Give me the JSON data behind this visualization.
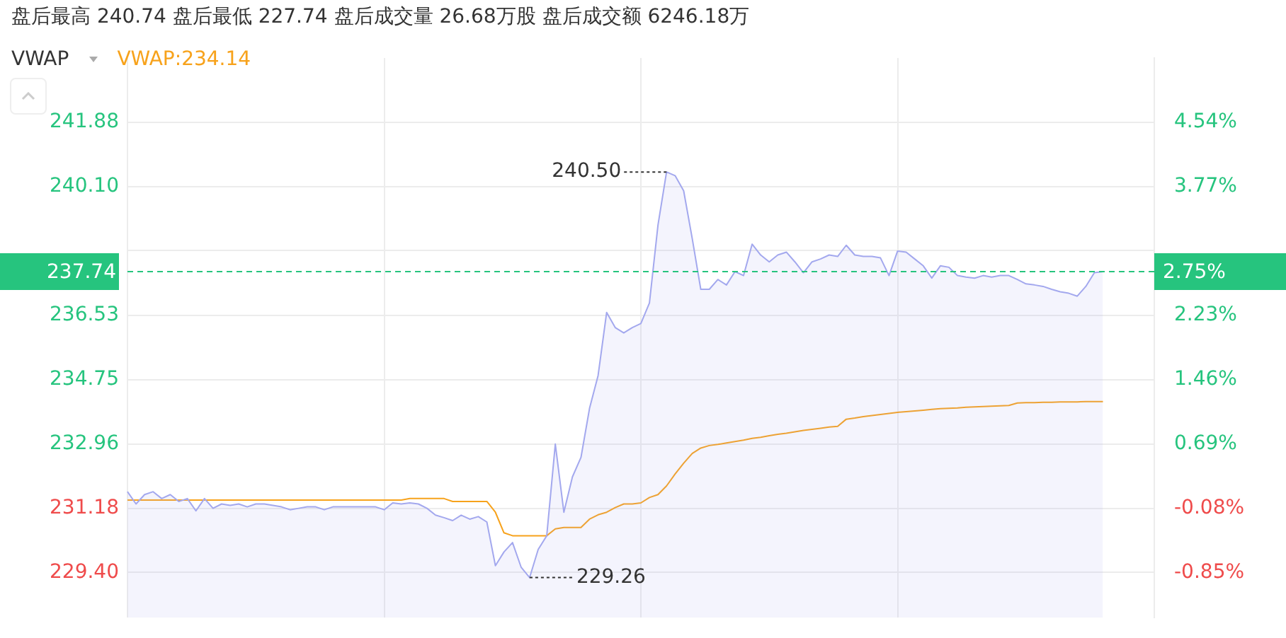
{
  "chart_data": {
    "type": "line",
    "title": "盘后最高 240.74 盘后最低 227.74 盘后成交量 26.68万股 盘后成交额 6246.18万",
    "subtitle": "VWAP",
    "categories": [
      null,
      null,
      null,
      null,
      null,
      null,
      null,
      null,
      null,
      null,
      null,
      null,
      null,
      null,
      null,
      null,
      null,
      null,
      null,
      null,
      null,
      null,
      null,
      null,
      null,
      null,
      null,
      null,
      null,
      null,
      null,
      null,
      null,
      null,
      null,
      null,
      null,
      null,
      null,
      null,
      null,
      null,
      null,
      null,
      null,
      null,
      null,
      null,
      null,
      null,
      null,
      null,
      null,
      null,
      null,
      null,
      null,
      null,
      null,
      null,
      null,
      null,
      null,
      null,
      null,
      null,
      null,
      null,
      null,
      null,
      null,
      null,
      null,
      null,
      null,
      null,
      null,
      null,
      null,
      null,
      null,
      null,
      null,
      null,
      null,
      null,
      null,
      null,
      null,
      null,
      null,
      null,
      null,
      null,
      null,
      null,
      null,
      null,
      null,
      null,
      null,
      null,
      null,
      null,
      null,
      null,
      null,
      null,
      null,
      null,
      null,
      null,
      null,
      null,
      null,
      null,
      null,
      null,
      null,
      null,
      null
    ],
    "series": [
      {
        "type": "area",
        "color": "#a3a8ee",
        "values": [
          231.64,
          231.3,
          231.56,
          231.64,
          231.45,
          231.56,
          231.37,
          231.45,
          231.11,
          231.45,
          231.18,
          231.3,
          231.26,
          231.3,
          231.22,
          231.3,
          231.3,
          231.26,
          231.22,
          231.14,
          231.18,
          231.22,
          231.22,
          231.14,
          231.22,
          231.22,
          231.22,
          231.22,
          231.22,
          231.22,
          231.14,
          231.33,
          231.3,
          231.33,
          231.3,
          231.18,
          230.99,
          230.92,
          230.84,
          230.99,
          230.88,
          230.95,
          230.8,
          229.59,
          229.97,
          230.23,
          229.55,
          229.26,
          230.04,
          230.42,
          232.96,
          231.07,
          232.05,
          232.59,
          233.95,
          234.86,
          236.61,
          236.19,
          236.04,
          236.19,
          236.3,
          236.87,
          239.03,
          240.5,
          240.4,
          239.98,
          238.66,
          237.25,
          237.25,
          237.52,
          237.37,
          237.74,
          237.63,
          238.5,
          238.2,
          238.01,
          238.2,
          238.28,
          238.01,
          237.71,
          238.01,
          238.09,
          238.2,
          238.16,
          238.47,
          238.2,
          238.16,
          238.16,
          238.12,
          237.63,
          238.31,
          238.28,
          238.09,
          237.9,
          237.56,
          237.9,
          237.86,
          237.63,
          237.59,
          237.56,
          237.63,
          237.59,
          237.63,
          237.63,
          237.52,
          237.4,
          237.37,
          237.33,
          237.25,
          237.18,
          237.14,
          237.06,
          237.33,
          237.71,
          237.74,
          null,
          null,
          null,
          null,
          null,
          null
        ]
      },
      {
        "name": "VWAP:234.14",
        "color": "#f7a21b",
        "values": [
          231.41,
          231.41,
          231.41,
          231.41,
          231.41,
          231.41,
          231.41,
          231.41,
          231.41,
          231.41,
          231.41,
          231.41,
          231.41,
          231.41,
          231.41,
          231.41,
          231.41,
          231.41,
          231.41,
          231.41,
          231.41,
          231.41,
          231.41,
          231.41,
          231.41,
          231.41,
          231.41,
          231.41,
          231.41,
          231.41,
          231.41,
          231.41,
          231.41,
          231.45,
          231.45,
          231.45,
          231.45,
          231.45,
          231.37,
          231.37,
          231.37,
          231.37,
          231.37,
          231.07,
          230.5,
          230.42,
          230.42,
          230.42,
          230.42,
          230.42,
          230.61,
          230.65,
          230.65,
          230.65,
          230.88,
          231.0,
          231.07,
          231.2,
          231.3,
          231.3,
          231.33,
          231.48,
          231.56,
          231.8,
          232.13,
          232.43,
          232.7,
          232.85,
          232.92,
          232.95,
          232.99,
          233.03,
          233.07,
          233.12,
          233.15,
          233.19,
          233.23,
          233.26,
          233.3,
          233.34,
          233.37,
          233.4,
          233.43,
          233.45,
          233.65,
          233.68,
          233.72,
          233.75,
          233.78,
          233.81,
          233.84,
          233.86,
          233.88,
          233.9,
          233.92,
          233.94,
          233.95,
          233.96,
          233.98,
          233.99,
          234.0,
          234.01,
          234.02,
          234.03,
          234.1,
          234.11,
          234.11,
          234.12,
          234.12,
          234.13,
          234.13,
          234.13,
          234.14,
          234.14,
          234.14,
          null,
          null,
          null,
          null,
          null,
          null
        ]
      }
    ],
    "ylim": [
      228.15,
      243.66
    ],
    "yticks": [
      {
        "value": 229.4,
        "label": "229.40"
      },
      {
        "value": 231.18,
        "label": "231.18"
      },
      {
        "value": 232.96,
        "label": "232.96"
      },
      {
        "value": 234.75,
        "label": "234.75"
      },
      {
        "value": 236.53,
        "label": "236.53"
      },
      {
        "value": 238.32,
        "label": null
      },
      {
        "value": 240.1,
        "label": "240.10"
      },
      {
        "value": 241.88,
        "label": "241.88"
      }
    ],
    "y2lim": [
      -1.39,
      5.31
    ],
    "y2ticks": [
      {
        "value": -0.85,
        "label": "-0.85%"
      },
      {
        "value": -0.08,
        "label": "-0.08%"
      },
      {
        "value": 0.69,
        "label": "0.69%"
      },
      {
        "value": 1.46,
        "label": "1.46%"
      },
      {
        "value": 2.23,
        "label": "2.23%"
      },
      {
        "value": 3.0,
        "label": null
      },
      {
        "value": 3.77,
        "label": "3.77%"
      },
      {
        "value": 4.54,
        "label": "4.54%"
      }
    ],
    "ref_lines": [
      {
        "axis": "y",
        "value": 237.74,
        "label": "237.74",
        "color": "#26c47e",
        "line_style": "dashed"
      }
    ],
    "annotations": [
      "240.50",
      "229.26",
      "2.75%"
    ],
    "grid": true,
    "legend": "top left",
    "marker": "none",
    "line_style": "solid"
  }
}
